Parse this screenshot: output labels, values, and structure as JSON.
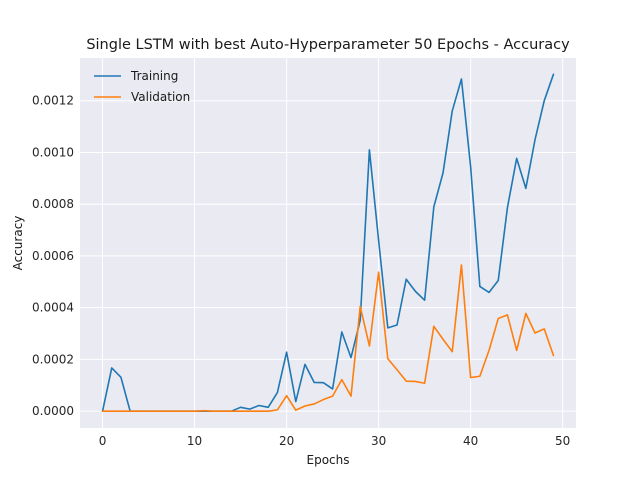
{
  "chart_data": {
    "type": "line",
    "title": "Single LSTM with best Auto-Hyperparameter 50 Epochs - Accuracy",
    "xlabel": "Epochs",
    "ylabel": "Accuracy",
    "xlim": [
      -2.45,
      51.45
    ],
    "ylim": [
      -6.5e-05,
      0.001365
    ],
    "x_ticks": [
      0,
      10,
      20,
      30,
      40,
      50
    ],
    "x_tick_labels": [
      "0",
      "10",
      "20",
      "30",
      "40",
      "50"
    ],
    "y_ticks": [
      0,
      0.0002,
      0.0004,
      0.0006,
      0.0008,
      0.001,
      0.0012
    ],
    "y_tick_labels": [
      "0.0000",
      "0.0002",
      "0.0004",
      "0.0006",
      "0.0008",
      "0.0010",
      "0.0012"
    ],
    "grid": true,
    "legend_position": "top-left",
    "x": [
      0,
      1,
      2,
      3,
      4,
      5,
      6,
      7,
      8,
      9,
      10,
      11,
      12,
      13,
      14,
      15,
      16,
      17,
      18,
      19,
      20,
      21,
      22,
      23,
      24,
      25,
      26,
      27,
      28,
      29,
      30,
      31,
      32,
      33,
      34,
      35,
      36,
      37,
      38,
      39,
      40,
      41,
      42,
      43,
      44,
      45,
      46,
      47,
      48,
      49
    ],
    "series": [
      {
        "name": "Training",
        "color": "#1f77b4",
        "values": [
          0,
          0.000167,
          0.000131,
          0,
          0,
          0,
          0,
          0,
          0,
          0,
          0,
          0,
          0,
          0,
          0,
          1.5e-05,
          8e-06,
          2.2e-05,
          1.5e-05,
          7.2e-05,
          0.000228,
          3.7e-05,
          0.000181,
          0.000111,
          0.00011,
          8.6e-05,
          0.000306,
          0.000207,
          0.000351,
          0.00101,
          0.00066,
          0.000322,
          0.000333,
          0.00051,
          0.000463,
          0.000429,
          0.00079,
          0.000921,
          0.00116,
          0.001284,
          0.000945,
          0.000482,
          0.000459,
          0.000505,
          0.000787,
          0.000977,
          0.000861,
          0.00105,
          0.0012,
          0.001302
        ]
      },
      {
        "name": "Validation",
        "color": "#ff7f0e",
        "values": [
          0,
          0,
          0,
          0,
          0,
          0,
          0,
          0,
          0,
          0,
          0,
          2e-06,
          0,
          0,
          0,
          0,
          0,
          0,
          0,
          5e-06,
          6e-05,
          4e-06,
          2e-05,
          2.8e-05,
          4.5e-05,
          5.8e-05,
          0.000122,
          5.8e-05,
          0.000405,
          0.000252,
          0.000537,
          0.000203,
          0.00016,
          0.000116,
          0.000115,
          0.000108,
          0.000328,
          0.000278,
          0.00023,
          0.000565,
          0.00013,
          0.000135,
          0.000235,
          0.000358,
          0.000372,
          0.000235,
          0.000378,
          0.000302,
          0.000318,
          0.000215
        ]
      }
    ]
  }
}
